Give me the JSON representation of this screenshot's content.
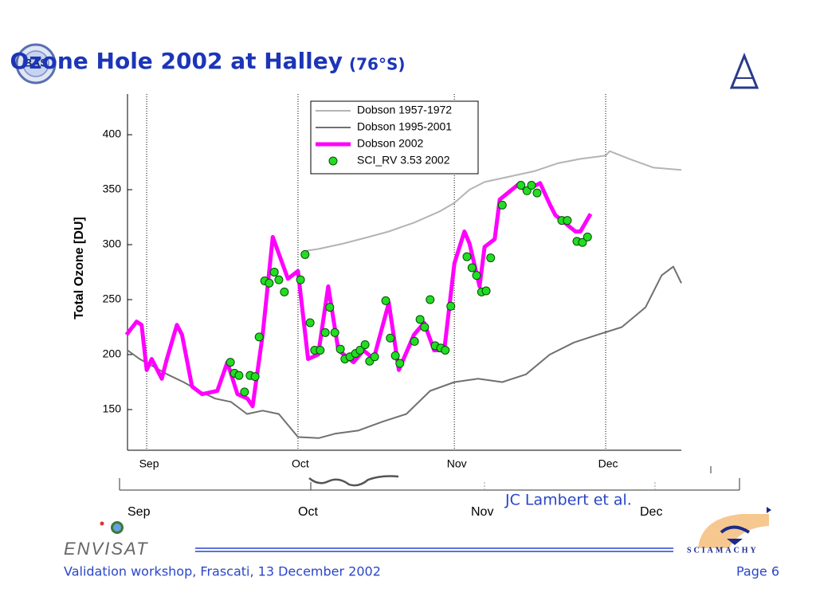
{
  "slide": {
    "logo_left": "BAS",
    "title": "Ozone Hole 2002 at Halley",
    "title_suffix": "(76°S)",
    "credit": "JC Lambert et al.",
    "overlay_axis_labels": [
      "Sep",
      "Oct",
      "Nov",
      "Dec"
    ],
    "mission": "ENVISAT",
    "instrument": "SCIAMACHY",
    "footer": "Validation workshop, Frascati, 13 December 2002",
    "page": "Page 6"
  },
  "chart_data": {
    "type": "line",
    "ylabel": "Total Ozone [DU]",
    "xlim": [
      240.2,
      350
    ],
    "xticks": [
      {
        "value": 244,
        "label": "Sep"
      },
      {
        "value": 274,
        "label": "Oct"
      },
      {
        "value": 305,
        "label": "Nov"
      },
      {
        "value": 335,
        "label": "Dec"
      }
    ],
    "ylim": [
      113,
      437
    ],
    "yticks": [
      150,
      200,
      250,
      300,
      350,
      400
    ],
    "xgrid": "dotted",
    "legend": "upper center",
    "series": [
      {
        "name": "Dobson 1957-1972",
        "color": "#b4b4b4",
        "mode": "line",
        "width": 2,
        "x": [
          275,
          278,
          283,
          288,
          292,
          297,
          302,
          305,
          308,
          311,
          316,
          321,
          325.5,
          330,
          335,
          335.8,
          339.7,
          344.5,
          350
        ],
        "values": [
          294,
          296,
          301,
          307,
          312,
          320,
          330,
          338,
          350,
          357,
          362,
          367,
          374,
          378,
          381,
          385,
          378,
          370,
          368
        ]
      },
      {
        "name": "Dobson 1995-2001",
        "color": "#707070",
        "mode": "line",
        "width": 2,
        "x": [
          240.2,
          242.6,
          245,
          248.1,
          251.3,
          254.4,
          257.6,
          260.7,
          263.9,
          267,
          270.2,
          274,
          278.1,
          281.3,
          286,
          290.8,
          295.5,
          300.2,
          305,
          309.7,
          314.5,
          319.2,
          323.9,
          328.7,
          333.4,
          338.2,
          342.9,
          346.1,
          348.4,
          350
        ],
        "values": [
          204,
          196,
          190,
          182,
          175,
          167,
          160,
          157,
          146,
          149,
          146,
          125,
          124,
          128,
          131,
          139,
          146,
          167,
          175,
          178,
          175,
          182,
          200,
          211,
          218,
          225,
          243,
          272,
          280,
          265
        ]
      },
      {
        "name": "Dobson 2002",
        "color": "#ff00ff",
        "mode": "line",
        "width": 5,
        "x": [
          240,
          242,
          243,
          244,
          245,
          247,
          248,
          250,
          251,
          253,
          255,
          258,
          260,
          262,
          264,
          265,
          267,
          269,
          272,
          274,
          276,
          278,
          280,
          282,
          285,
          287,
          289,
          292,
          294,
          297,
          299,
          301,
          303,
          305,
          307,
          308,
          310,
          311,
          313,
          314,
          318,
          319,
          322,
          324,
          325,
          329,
          330,
          332
        ],
        "values": [
          218,
          230,
          227,
          186,
          196,
          178,
          196,
          227,
          218,
          171,
          164,
          167,
          193,
          164,
          160,
          153,
          218,
          307,
          269,
          276,
          196,
          200,
          262,
          204,
          193,
          204,
          196,
          247,
          186,
          218,
          229,
          204,
          204,
          283,
          312,
          301,
          262,
          298,
          305,
          341,
          356,
          349,
          356,
          336,
          327,
          312,
          312,
          328
        ]
      },
      {
        "name": "SCI_RV 3.53 2002",
        "color": "#22dd22",
        "mode": "markers",
        "x": [
          260.6,
          261.4,
          262.3,
          263.4,
          264.5,
          265.5,
          266.3,
          267.4,
          268.3,
          269.3,
          270.2,
          271.3,
          274.5,
          275.4,
          276.4,
          277.3,
          278.4,
          279.4,
          280.3,
          281.3,
          282.4,
          283.3,
          284.3,
          285.4,
          286.3,
          287.3,
          288.2,
          289.2,
          291.4,
          292.3,
          293.3,
          294.2,
          297.1,
          298.2,
          299.1,
          300.2,
          301.2,
          302.3,
          303.2,
          304.3,
          307.5,
          308.5,
          309.4,
          310.4,
          311.3,
          312.2,
          314.5,
          318.2,
          319.4,
          320.3,
          321.4,
          326.3,
          327.4,
          329.3,
          330.4,
          331.4
        ],
        "values": [
          193,
          183,
          181,
          166,
          181,
          180,
          216,
          267,
          265,
          275,
          268,
          257,
          268,
          291,
          229,
          204,
          204,
          220,
          243,
          220,
          205,
          196,
          198,
          201,
          204,
          209,
          194,
          198,
          249,
          215,
          199,
          192,
          212,
          232,
          225,
          250,
          208,
          206,
          204,
          244,
          289,
          279,
          272,
          257,
          258,
          288,
          336,
          354,
          349,
          354,
          347,
          322,
          322,
          303,
          302,
          307
        ]
      }
    ]
  }
}
